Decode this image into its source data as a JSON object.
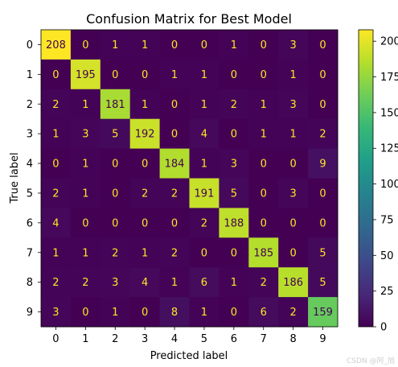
{
  "chart_data": {
    "type": "heatmap",
    "title": "Confusion Matrix for Best Model",
    "xlabel": "Predicted label",
    "ylabel": "True label",
    "x_categories": [
      "0",
      "1",
      "2",
      "3",
      "4",
      "5",
      "6",
      "7",
      "8",
      "9"
    ],
    "y_categories": [
      "0",
      "1",
      "2",
      "3",
      "4",
      "5",
      "6",
      "7",
      "8",
      "9"
    ],
    "values": [
      [
        208,
        0,
        1,
        1,
        0,
        0,
        1,
        0,
        3,
        0
      ],
      [
        0,
        195,
        0,
        0,
        1,
        1,
        0,
        0,
        1,
        0
      ],
      [
        2,
        1,
        181,
        1,
        0,
        1,
        2,
        1,
        3,
        0
      ],
      [
        1,
        3,
        5,
        192,
        0,
        4,
        0,
        1,
        1,
        2
      ],
      [
        0,
        1,
        0,
        0,
        184,
        1,
        3,
        0,
        0,
        9
      ],
      [
        2,
        1,
        0,
        2,
        2,
        191,
        5,
        0,
        3,
        0
      ],
      [
        4,
        0,
        0,
        0,
        0,
        2,
        188,
        0,
        0,
        0
      ],
      [
        1,
        1,
        2,
        1,
        2,
        0,
        0,
        185,
        0,
        5
      ],
      [
        2,
        2,
        3,
        4,
        1,
        6,
        1,
        2,
        186,
        5
      ],
      [
        3,
        0,
        1,
        0,
        8,
        1,
        0,
        6,
        2,
        159
      ]
    ],
    "colorbar": {
      "ticks": [
        0,
        25,
        50,
        75,
        100,
        125,
        150,
        175,
        200
      ],
      "tick_labels": [
        "0",
        "25",
        "50",
        "75",
        "100",
        "125",
        "150",
        "175",
        "200"
      ],
      "min": 0,
      "max": 208
    },
    "colormap": "viridis",
    "grid": false
  },
  "watermark": "CSDN @阿_旭"
}
